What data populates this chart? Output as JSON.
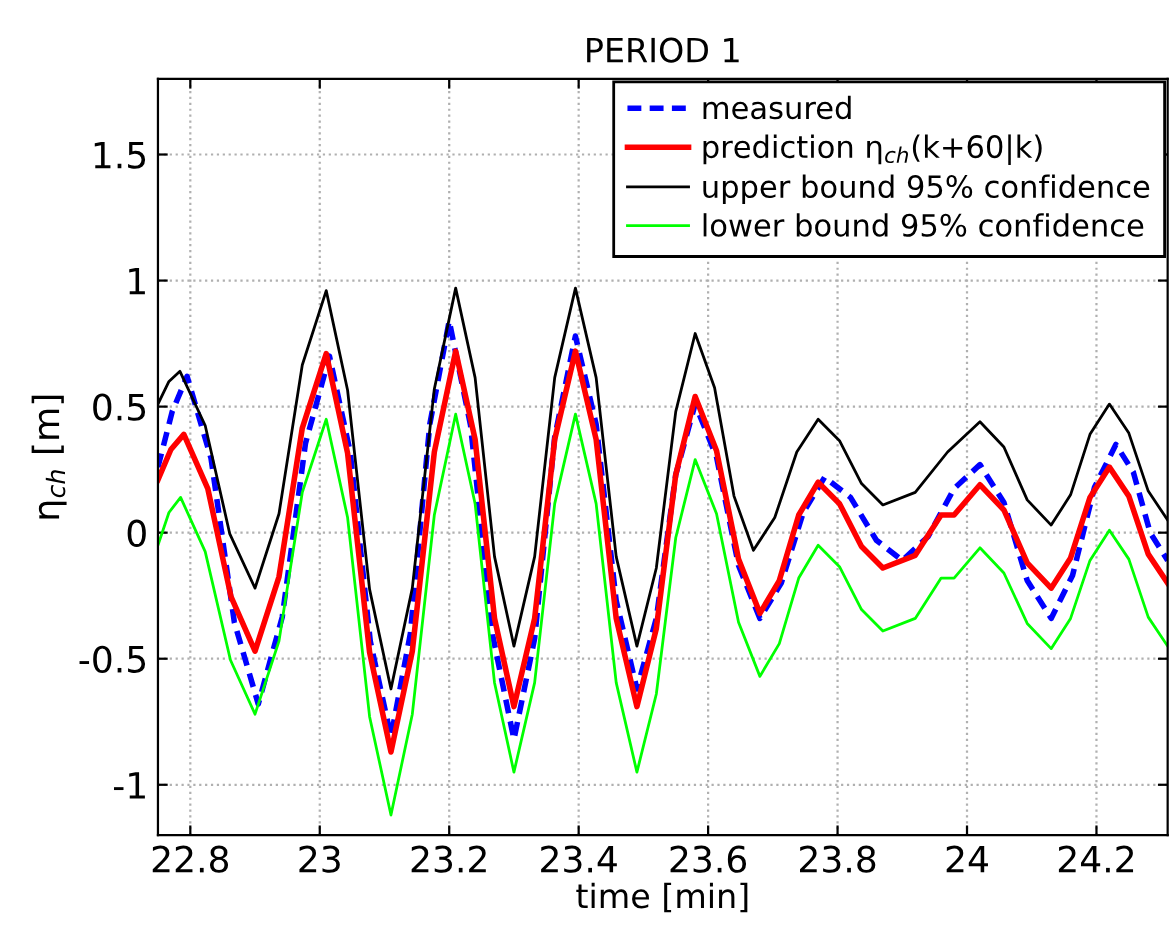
{
  "chart_data": {
    "type": "line",
    "title": "PERIOD 1",
    "xlabel": "time [min]",
    "ylabel": "η$_{ch}$ [m]",
    "xlim": [
      22.75,
      24.31
    ],
    "ylim": [
      -1.2,
      1.8
    ],
    "xticks": [
      22.8,
      23,
      23.2,
      23.4,
      23.6,
      23.8,
      24,
      24.2
    ],
    "yticks": [
      -1,
      -0.5,
      0,
      0.5,
      1,
      1.5
    ],
    "grid": true,
    "legend": "top right",
    "marker": "none",
    "series": [
      {
        "name": "measured",
        "color": "#0000ff",
        "line_style": "dashed",
        "x": [
          22.75,
          22.772,
          22.795,
          22.832,
          22.868,
          22.905,
          22.942,
          22.978,
          23.015,
          23.047,
          23.078,
          23.11,
          23.14,
          23.17,
          23.2,
          23.233,
          23.267,
          23.3,
          23.332,
          23.363,
          23.395,
          23.427,
          23.458,
          23.49,
          23.52,
          23.55,
          23.58,
          23.613,
          23.647,
          23.68,
          23.713,
          23.747,
          23.78,
          23.82,
          23.86,
          23.9,
          23.94,
          23.98,
          24.02,
          24.057,
          24.093,
          24.13,
          24.163,
          24.197,
          24.23,
          24.257,
          24.283,
          24.31
        ],
        "values": [
          0.26,
          0.48,
          0.62,
          0.295,
          -0.355,
          -0.68,
          -0.335,
          0.355,
          0.7,
          0.32,
          -0.43,
          -0.81,
          -0.4,
          0.43,
          0.84,
          0.425,
          -0.405,
          -0.82,
          -0.42,
          0.38,
          0.78,
          0.43,
          -0.27,
          -0.62,
          -0.34,
          0.23,
          0.51,
          0.3,
          -0.13,
          -0.34,
          -0.2,
          0.08,
          0.22,
          0.14,
          -0.03,
          -0.11,
          -0.015,
          0.175,
          0.27,
          0.12,
          -0.19,
          -0.34,
          -0.17,
          0.18,
          0.35,
          0.24,
          0.0,
          -0.11
        ]
      },
      {
        "name": "prediction η$_{ch}$(k+60|k)",
        "color": "#ff0000",
        "line_style": "solid",
        "x": [
          22.75,
          22.77,
          22.79,
          22.827,
          22.863,
          22.9,
          22.937,
          22.973,
          23.01,
          23.043,
          23.077,
          23.11,
          23.143,
          23.177,
          23.21,
          23.24,
          23.27,
          23.3,
          23.332,
          23.363,
          23.395,
          23.427,
          23.458,
          23.49,
          23.52,
          23.55,
          23.58,
          23.613,
          23.647,
          23.68,
          23.71,
          23.74,
          23.77,
          23.803,
          23.837,
          23.87,
          23.92,
          23.96,
          23.98,
          24.02,
          24.057,
          24.093,
          24.13,
          24.16,
          24.19,
          24.22,
          24.25,
          24.28,
          24.31
        ],
        "values": [
          0.21,
          0.33,
          0.39,
          0.175,
          -0.255,
          -0.47,
          -0.175,
          0.415,
          0.71,
          0.315,
          -0.475,
          -0.87,
          -0.47,
          0.32,
          0.72,
          0.37,
          -0.34,
          -0.69,
          -0.34,
          0.37,
          0.72,
          0.37,
          -0.34,
          -0.69,
          -0.38,
          0.23,
          0.54,
          0.325,
          -0.105,
          -0.32,
          -0.19,
          0.07,
          0.2,
          0.115,
          -0.055,
          -0.14,
          -0.09,
          0.07,
          0.07,
          0.19,
          0.09,
          -0.12,
          -0.22,
          -0.1,
          0.14,
          0.26,
          0.145,
          -0.085,
          -0.2
        ]
      },
      {
        "name": "upper bound 95% confidence",
        "color": "#000000",
        "line_style": "solid",
        "x": [
          22.75,
          22.767,
          22.784,
          22.823,
          22.861,
          22.9,
          22.937,
          22.973,
          23.01,
          23.043,
          23.077,
          23.11,
          23.143,
          23.177,
          23.21,
          23.24,
          23.27,
          23.3,
          23.332,
          23.363,
          23.395,
          23.427,
          23.458,
          23.49,
          23.52,
          23.55,
          23.58,
          23.61,
          23.64,
          23.67,
          23.703,
          23.737,
          23.77,
          23.803,
          23.837,
          23.87,
          23.92,
          23.97,
          24.02,
          24.057,
          24.093,
          24.13,
          24.16,
          24.19,
          24.22,
          24.25,
          24.28,
          24.31
        ],
        "values": [
          0.51,
          0.6,
          0.64,
          0.425,
          -0.005,
          -0.22,
          0.075,
          0.665,
          0.96,
          0.565,
          -0.225,
          -0.62,
          -0.22,
          0.57,
          0.97,
          0.615,
          -0.095,
          -0.45,
          -0.095,
          0.615,
          0.97,
          0.615,
          -0.095,
          -0.45,
          -0.14,
          0.48,
          0.79,
          0.575,
          0.145,
          -0.07,
          0.06,
          0.32,
          0.45,
          0.365,
          0.195,
          0.11,
          0.16,
          0.32,
          0.44,
          0.34,
          0.13,
          0.03,
          0.15,
          0.39,
          0.51,
          0.395,
          0.165,
          0.05
        ]
      },
      {
        "name": "lower bound 95% confidence",
        "color": "#00ff00",
        "line_style": "solid",
        "x": [
          22.75,
          22.767,
          22.785,
          22.823,
          22.862,
          22.9,
          22.937,
          22.973,
          23.01,
          23.043,
          23.077,
          23.11,
          23.143,
          23.177,
          23.21,
          23.24,
          23.27,
          23.3,
          23.332,
          23.363,
          23.395,
          23.427,
          23.458,
          23.49,
          23.52,
          23.55,
          23.58,
          23.613,
          23.647,
          23.68,
          23.71,
          23.74,
          23.77,
          23.803,
          23.837,
          23.87,
          23.92,
          23.96,
          23.98,
          24.02,
          24.057,
          24.093,
          24.13,
          24.16,
          24.19,
          24.22,
          24.25,
          24.28,
          24.31
        ],
        "values": [
          -0.05,
          0.08,
          0.14,
          -0.075,
          -0.505,
          -0.72,
          -0.43,
          0.16,
          0.45,
          0.06,
          -0.73,
          -1.12,
          -0.72,
          0.07,
          0.47,
          0.115,
          -0.595,
          -0.95,
          -0.595,
          0.115,
          0.47,
          0.115,
          -0.595,
          -0.95,
          -0.64,
          -0.02,
          0.29,
          0.075,
          -0.355,
          -0.57,
          -0.44,
          -0.18,
          -0.05,
          -0.135,
          -0.305,
          -0.39,
          -0.34,
          -0.18,
          -0.18,
          -0.06,
          -0.16,
          -0.36,
          -0.46,
          -0.34,
          -0.11,
          0.01,
          -0.105,
          -0.335,
          -0.45
        ]
      }
    ]
  }
}
